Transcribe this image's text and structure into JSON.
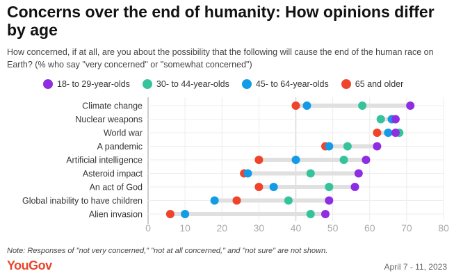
{
  "chart_data": {
    "type": "dot",
    "title": "Concerns over the end of humanity: How opinions differ by age",
    "subtitle": "How concerned, if at all, are you about the possibility that the following will cause the end of the human race on Earth? (% who say \"very concerned\" or \"somewhat concerned\")",
    "xlim": [
      0,
      80
    ],
    "xticks": [
      0,
      10,
      20,
      30,
      40,
      50,
      60,
      70,
      80
    ],
    "grid": true,
    "legend_placement": "top",
    "categories": [
      "Climate change",
      "Nuclear weapons",
      "World war",
      "A pandemic",
      "Artificial intelligence",
      "Asteroid impact",
      "An act of God",
      "Global inability to have children",
      "Alien invasion"
    ],
    "series": [
      {
        "name": "18- to 29-year-olds",
        "color": "#8e2de2",
        "values": [
          71,
          67,
          67,
          62,
          59,
          57,
          56,
          49,
          48
        ]
      },
      {
        "name": "30- to 44-year-olds",
        "color": "#34c39a",
        "values": [
          58,
          63,
          68,
          54,
          53,
          44,
          49,
          38,
          44
        ]
      },
      {
        "name": "45- to 64-year-olds",
        "color": "#129be6",
        "values": [
          43,
          66,
          65,
          49,
          40,
          27,
          34,
          18,
          10
        ]
      },
      {
        "name": "65 and older",
        "color": "#f0432b",
        "values": [
          40,
          66,
          62,
          48,
          30,
          26,
          30,
          24,
          6
        ]
      }
    ]
  },
  "note": "Note: Responses of \"not very concerned,\" \"not at all concerned,\" and \"not sure\" are not shown.",
  "logo": "YouGov",
  "date": "April 7 - 11, 2023"
}
